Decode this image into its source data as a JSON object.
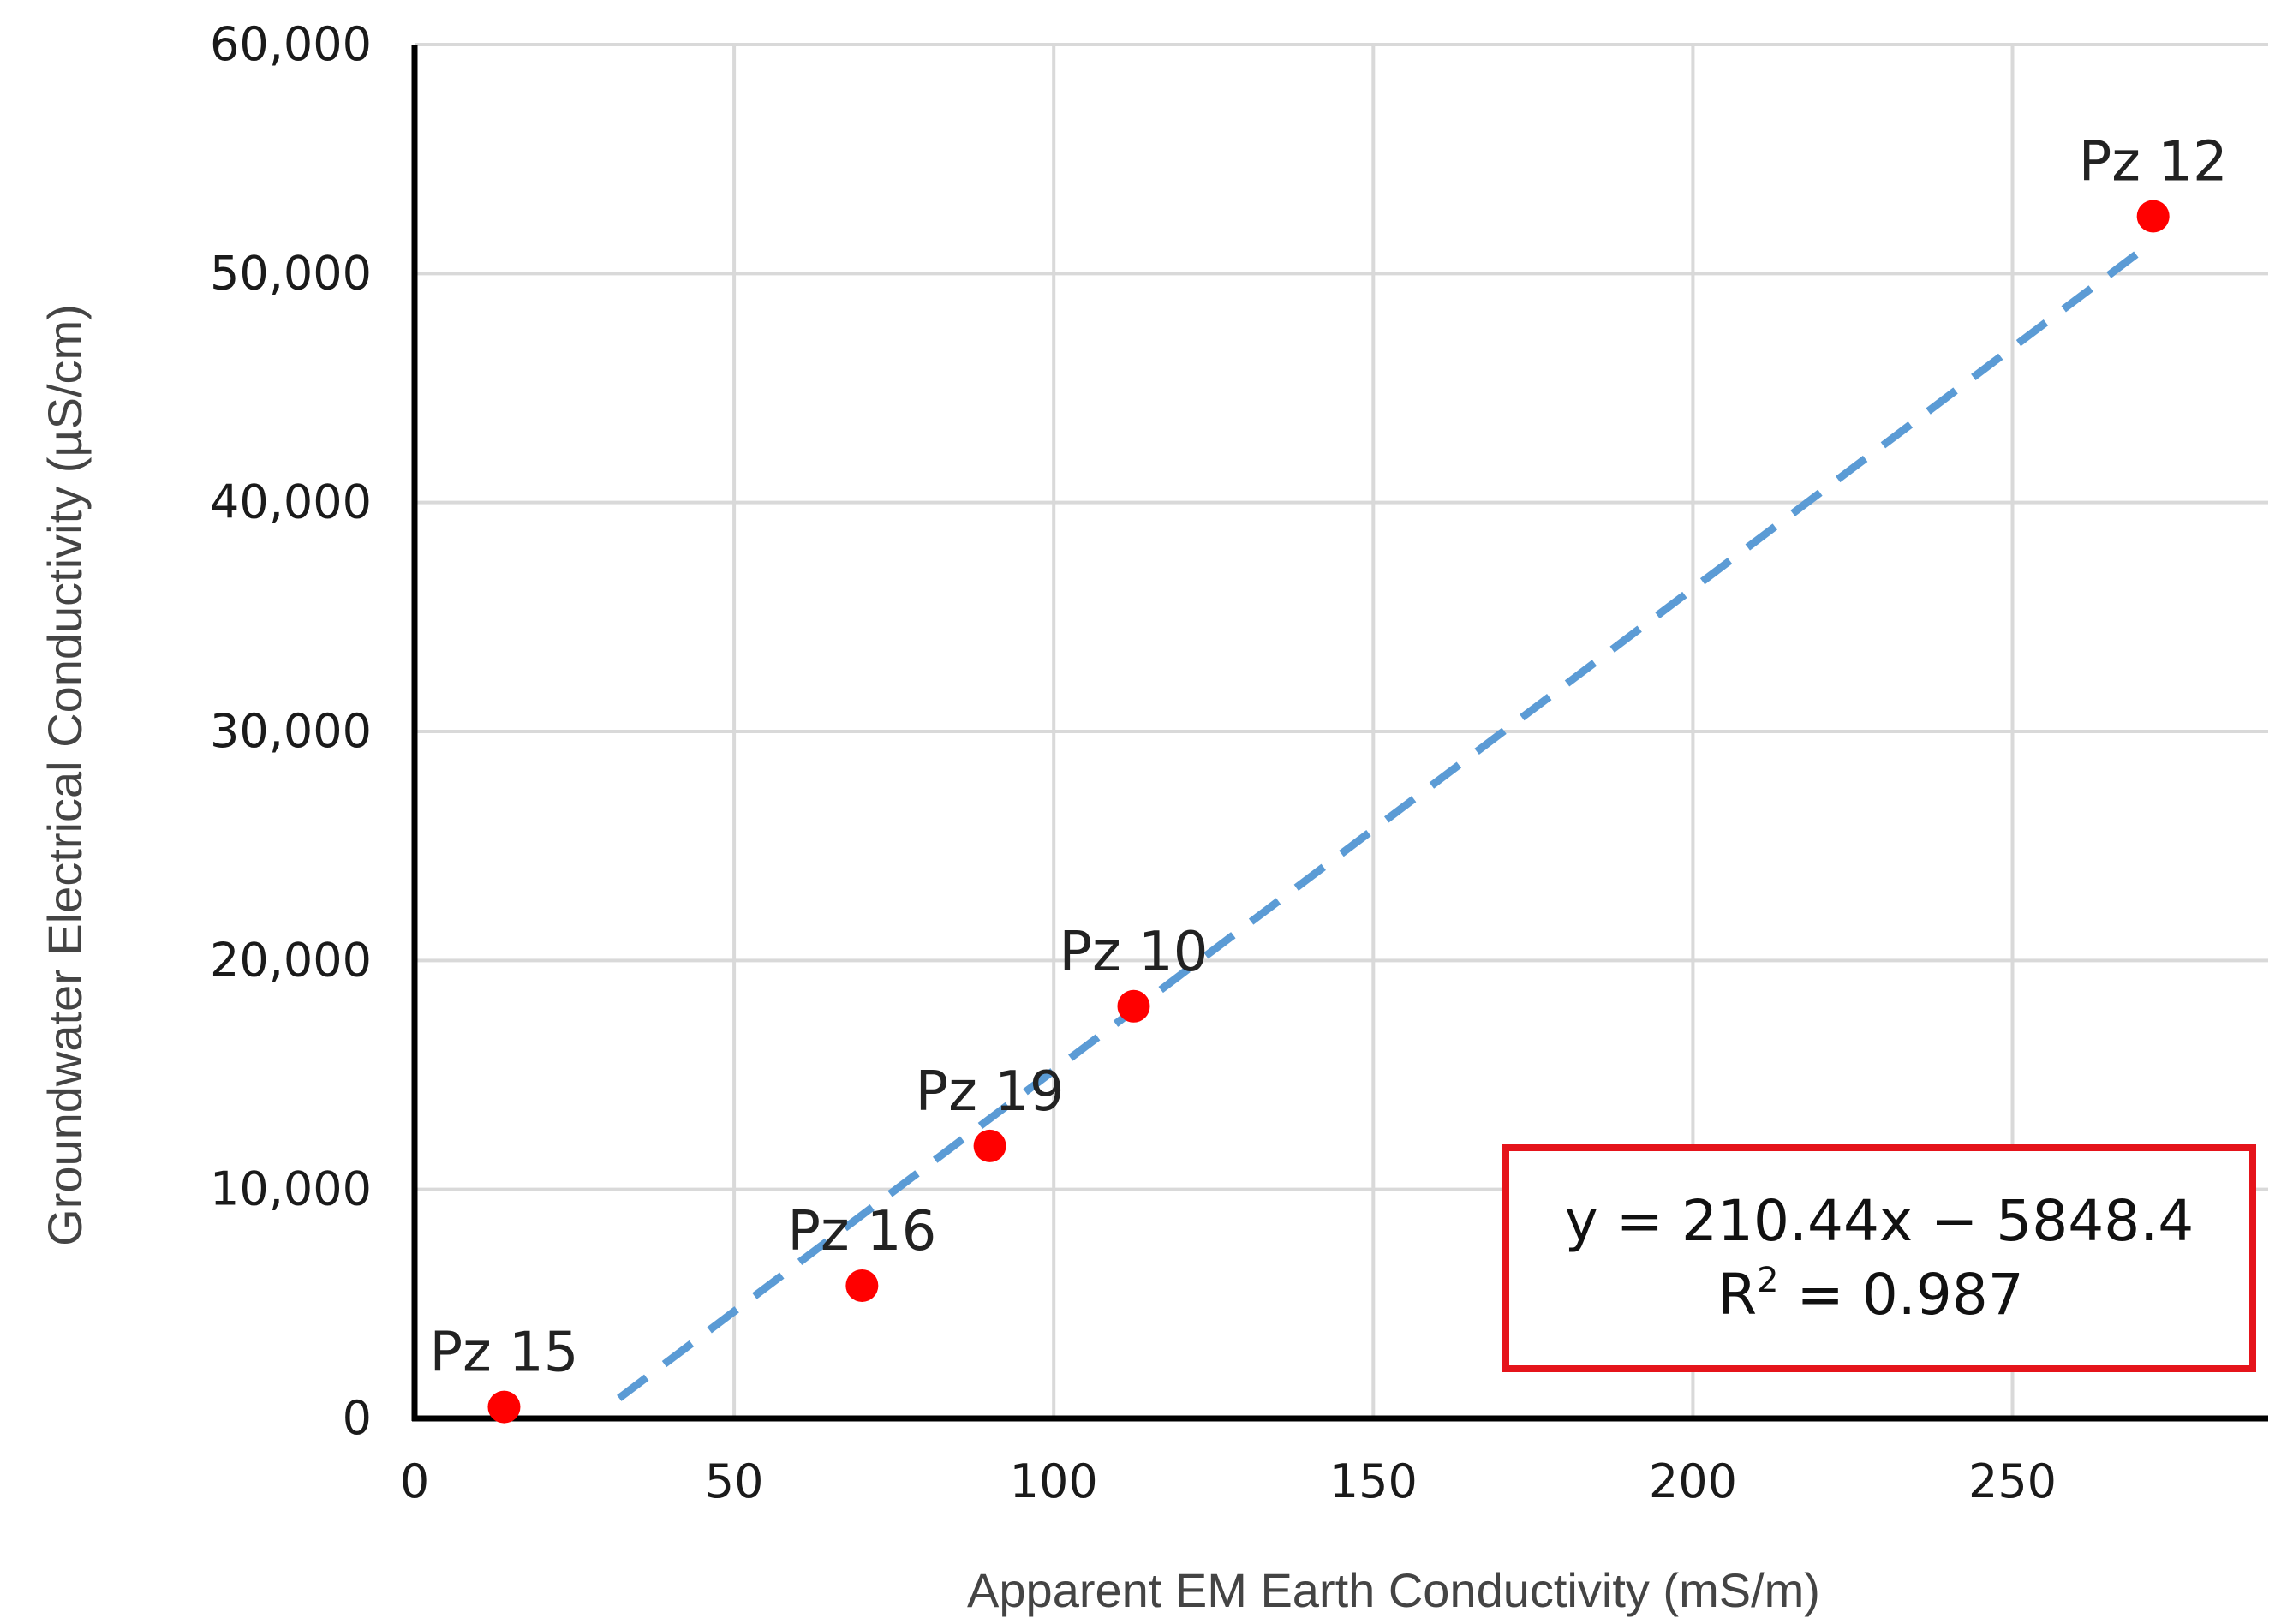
{
  "chart_data": {
    "type": "scatter",
    "title": "",
    "xlabel": "Apparent EM Earth Conductivity (mS/m)",
    "ylabel": "Groundwater Electrical Conductivity (µS/cm)",
    "xlim": [
      0,
      290
    ],
    "ylim": [
      0,
      60000
    ],
    "x_ticks": [
      0,
      50,
      100,
      150,
      200,
      250
    ],
    "x_tick_labels": [
      "0",
      "50",
      "100",
      "150",
      "200",
      "250"
    ],
    "y_ticks": [
      0,
      10000,
      20000,
      30000,
      40000,
      50000,
      60000
    ],
    "y_tick_labels": [
      "0",
      "10,000",
      "20,000",
      "30,000",
      "40,000",
      "50,000",
      "60,000"
    ],
    "grid": true,
    "points": [
      {
        "label": "Pz 15",
        "x": 14,
        "y": 500
      },
      {
        "label": "Pz 16",
        "x": 70,
        "y": 5800
      },
      {
        "label": "Pz 19",
        "x": 90,
        "y": 11900
      },
      {
        "label": "Pz 10",
        "x": 112.5,
        "y": 18000
      },
      {
        "label": "Pz 12",
        "x": 272,
        "y": 52500
      }
    ],
    "trendline": {
      "type": "linear",
      "slope": 210.44,
      "intercept": -5848.4,
      "x_range": [
        32,
        272
      ],
      "equation_text": "y = 210.44x − 5848.4",
      "r2_prefix": "R",
      "r2_superscript": "2",
      "r2_suffix": " = 0.987",
      "box_position": "bottom-right"
    },
    "colors": {
      "points": "#ff0000",
      "trendline": "#5b9bd5",
      "grid": "#d9d9d9",
      "axis": "#000000",
      "equation_box": "#e5141b"
    }
  }
}
